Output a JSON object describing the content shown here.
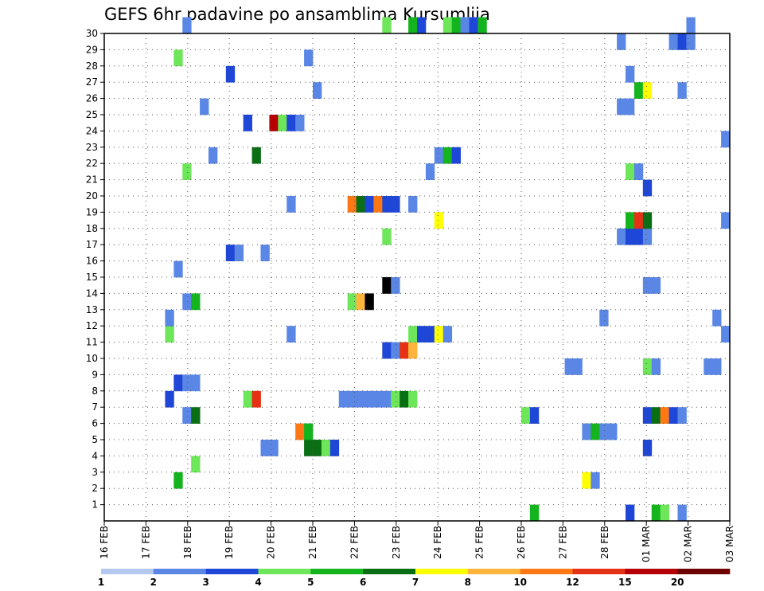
{
  "chart_data": {
    "type": "heatmap",
    "title": "GEFS 6hr padavine po ansamblima Kursumlija",
    "xlabel": "",
    "ylabel": "",
    "ylim": [
      0,
      30
    ],
    "y_ticks": [
      "1",
      "2",
      "3",
      "4",
      "5",
      "6",
      "7",
      "8",
      "9",
      "10",
      "11",
      "12",
      "13",
      "14",
      "15",
      "16",
      "17",
      "18",
      "19",
      "20",
      "21",
      "22",
      "23",
      "24",
      "25",
      "26",
      "27",
      "28",
      "29",
      "30"
    ],
    "x_ticks": [
      "16 FEB",
      "17 FEB",
      "18 FEB",
      "19 FEB",
      "20 FEB",
      "21 FEB",
      "22 FEB",
      "23 FEB",
      "24 FEB",
      "25 FEB",
      "26 FEB",
      "27 FEB",
      "28 FEB",
      "01 MAR",
      "02 MAR",
      "03 MAR"
    ],
    "grid": true,
    "colorbar_labels": [
      "1",
      "2",
      "3",
      "4",
      "5",
      "6",
      "7",
      "8",
      "10",
      "12",
      "15",
      "20"
    ],
    "colors": [
      "#b4c8f0",
      "#5a87e6",
      "#1e46d7",
      "#6ee65a",
      "#14b41e",
      "#0a6e14",
      "#ffff00",
      "#ffb43c",
      "#ff7814",
      "#e63214",
      "#b40000",
      "#6e0000"
    ],
    "cells": [
      [
        0,
        49,
        4
      ],
      [
        0,
        60,
        2
      ],
      [
        0,
        63,
        4
      ],
      [
        0,
        64,
        3
      ],
      [
        0,
        66,
        1
      ],
      [
        2,
        8,
        4
      ],
      [
        2,
        55,
        6
      ],
      [
        2,
        56,
        1
      ],
      [
        3,
        10,
        3
      ],
      [
        4,
        18,
        1
      ],
      [
        4,
        19,
        1
      ],
      [
        4,
        23,
        5
      ],
      [
        4,
        24,
        5
      ],
      [
        4,
        25,
        3
      ],
      [
        4,
        26,
        2
      ],
      [
        4,
        62,
        2
      ],
      [
        5,
        22,
        8
      ],
      [
        5,
        23,
        4
      ],
      [
        5,
        55,
        1
      ],
      [
        5,
        56,
        4
      ],
      [
        5,
        57,
        1
      ],
      [
        5,
        58,
        1
      ],
      [
        6,
        9,
        1
      ],
      [
        6,
        10,
        5
      ],
      [
        6,
        48,
        3
      ],
      [
        6,
        49,
        2
      ],
      [
        6,
        62,
        2
      ],
      [
        6,
        63,
        5
      ],
      [
        6,
        64,
        8
      ],
      [
        6,
        65,
        2
      ],
      [
        6,
        66,
        1
      ],
      [
        7,
        7,
        2
      ],
      [
        7,
        16,
        3
      ],
      [
        7,
        17,
        9
      ],
      [
        7,
        27,
        1
      ],
      [
        7,
        28,
        1
      ],
      [
        7,
        29,
        1
      ],
      [
        7,
        30,
        1
      ],
      [
        7,
        31,
        1
      ],
      [
        7,
        32,
        1
      ],
      [
        7,
        33,
        3
      ],
      [
        7,
        34,
        5
      ],
      [
        7,
        35,
        3
      ],
      [
        8,
        8,
        2
      ],
      [
        8,
        9,
        1
      ],
      [
        8,
        10,
        1
      ],
      [
        9,
        53,
        1
      ],
      [
        9,
        54,
        1
      ],
      [
        9,
        62,
        3
      ],
      [
        9,
        63,
        1
      ],
      [
        9,
        69,
        1
      ],
      [
        9,
        70,
        1
      ],
      [
        10,
        32,
        2
      ],
      [
        10,
        33,
        1
      ],
      [
        10,
        34,
        9
      ],
      [
        10,
        35,
        7
      ],
      [
        11,
        7,
        3
      ],
      [
        11,
        21,
        1
      ],
      [
        11,
        35,
        3
      ],
      [
        11,
        36,
        2
      ],
      [
        11,
        37,
        2
      ],
      [
        11,
        38,
        6
      ],
      [
        11,
        39,
        1
      ],
      [
        11,
        71,
        1
      ],
      [
        12,
        7,
        1
      ],
      [
        12,
        57,
        1
      ],
      [
        12,
        70,
        1
      ],
      [
        13,
        9,
        1
      ],
      [
        13,
        10,
        4
      ],
      [
        13,
        28,
        3
      ],
      [
        13,
        29,
        7
      ],
      [
        13,
        30,
        12
      ],
      [
        14,
        32,
        12
      ],
      [
        14,
        33,
        1
      ],
      [
        14,
        62,
        1
      ],
      [
        14,
        63,
        1
      ],
      [
        15,
        8,
        1
      ],
      [
        16,
        14,
        2
      ],
      [
        16,
        15,
        1
      ],
      [
        16,
        18,
        1
      ],
      [
        17,
        32,
        3
      ],
      [
        17,
        59,
        1
      ],
      [
        17,
        60,
        2
      ],
      [
        17,
        61,
        2
      ],
      [
        17,
        62,
        1
      ],
      [
        18,
        38,
        6
      ],
      [
        18,
        60,
        4
      ],
      [
        18,
        61,
        9
      ],
      [
        18,
        62,
        5
      ],
      [
        18,
        71,
        1
      ],
      [
        19,
        21,
        1
      ],
      [
        19,
        28,
        8
      ],
      [
        19,
        29,
        5
      ],
      [
        19,
        30,
        2
      ],
      [
        19,
        31,
        8
      ],
      [
        19,
        32,
        2
      ],
      [
        19,
        33,
        2
      ],
      [
        19,
        35,
        1
      ],
      [
        20,
        62,
        2
      ],
      [
        21,
        9,
        3
      ],
      [
        21,
        37,
        1
      ],
      [
        21,
        60,
        3
      ],
      [
        21,
        61,
        1
      ],
      [
        22,
        12,
        1
      ],
      [
        22,
        17,
        5
      ],
      [
        22,
        38,
        1
      ],
      [
        22,
        39,
        4
      ],
      [
        22,
        40,
        2
      ],
      [
        23,
        71,
        1
      ],
      [
        24,
        16,
        2
      ],
      [
        24,
        19,
        10
      ],
      [
        24,
        20,
        3
      ],
      [
        24,
        21,
        2
      ],
      [
        24,
        22,
        1
      ],
      [
        25,
        11,
        1
      ],
      [
        25,
        59,
        1
      ],
      [
        25,
        60,
        1
      ],
      [
        26,
        24,
        1
      ],
      [
        26,
        61,
        4
      ],
      [
        26,
        62,
        6
      ],
      [
        26,
        66,
        1
      ],
      [
        27,
        14,
        2
      ],
      [
        27,
        60,
        1
      ],
      [
        28,
        8,
        3
      ],
      [
        28,
        23,
        1
      ],
      [
        29,
        59,
        1
      ],
      [
        29,
        65,
        1
      ],
      [
        29,
        66,
        2
      ],
      [
        29,
        67,
        1
      ],
      [
        30,
        9,
        1
      ],
      [
        30,
        32,
        3
      ],
      [
        30,
        35,
        4
      ],
      [
        30,
        36,
        2
      ],
      [
        30,
        39,
        3
      ],
      [
        30,
        40,
        4
      ],
      [
        30,
        41,
        1
      ],
      [
        30,
        42,
        2
      ],
      [
        30,
        43,
        4
      ],
      [
        30,
        67,
        1
      ]
    ]
  }
}
